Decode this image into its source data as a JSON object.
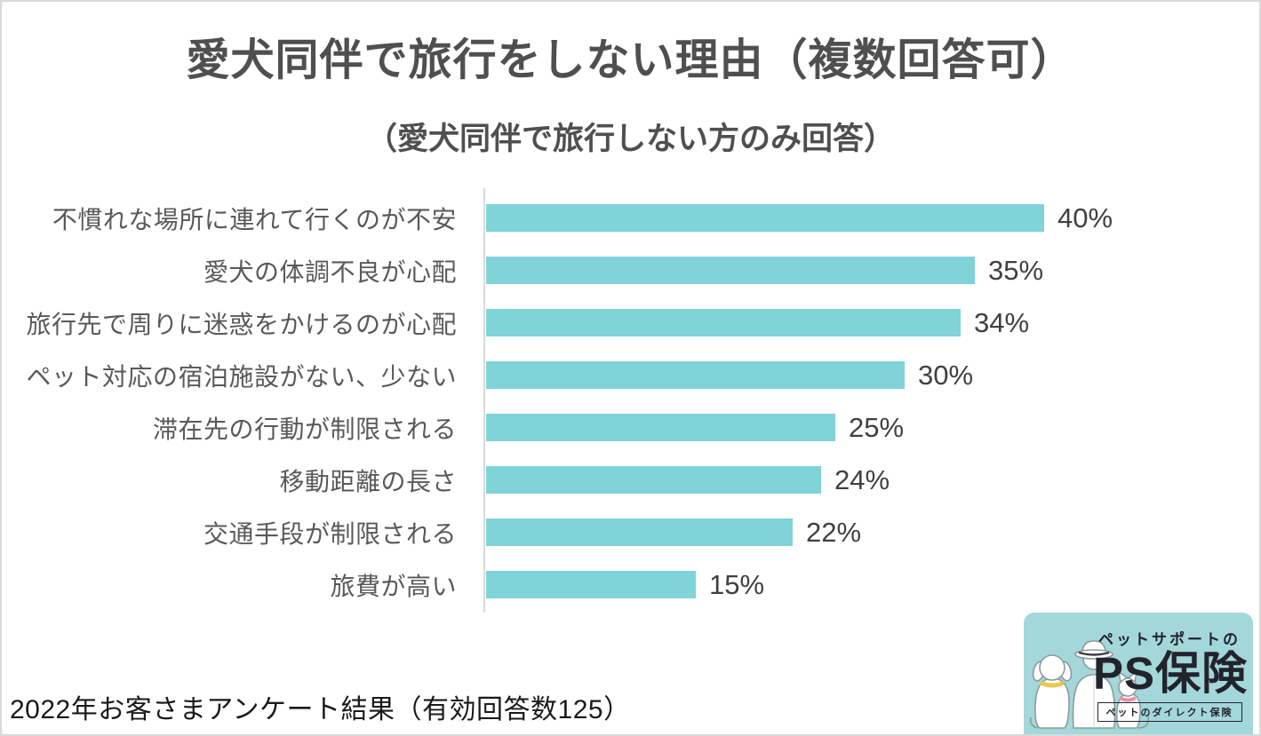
{
  "title": "愛犬同伴で旅行をしない理由（複数回答可）",
  "subtitle": "（愛犬同伴で旅行しない方のみ回答）",
  "footer": "2022年お客さまアンケート結果（有効回答数125）",
  "logo": {
    "tagline": "ペットサポートの",
    "brand": "PS保険",
    "caption": "ペットのダイレクト保険"
  },
  "colors": {
    "bar": "#80d3d8",
    "axis": "#d9d9d9",
    "title_text": "#4f4f4f",
    "category_text": "#595959",
    "value_text": "#404040",
    "logo_background": "#a3d7d9",
    "logo_text": "#23232d",
    "dog_collar": "#e6c94f",
    "cat_collar": "#e890a0"
  },
  "chart_data": {
    "type": "bar",
    "orientation": "horizontal",
    "title": "愛犬同伴で旅行をしない理由（複数回答可）",
    "subtitle": "（愛犬同伴で旅行しない方のみ回答）",
    "categories": [
      "不慣れな場所に連れて行くのが不安",
      "愛犬の体調不良が心配",
      "旅行先で周りに迷惑をかけるのが心配",
      "ペット対応の宿泊施設がない、少ない",
      "滞在先の行動が制限される",
      "移動距離の長さ",
      "交通手段が制限される",
      "旅費が高い"
    ],
    "values": [
      40,
      35,
      34,
      30,
      25,
      24,
      22,
      15
    ],
    "value_labels": [
      "40%",
      "35%",
      "34%",
      "30%",
      "25%",
      "24%",
      "22%",
      "15%"
    ],
    "unit": "%",
    "xlim": [
      0,
      40
    ],
    "grid": false,
    "legend": "none"
  }
}
